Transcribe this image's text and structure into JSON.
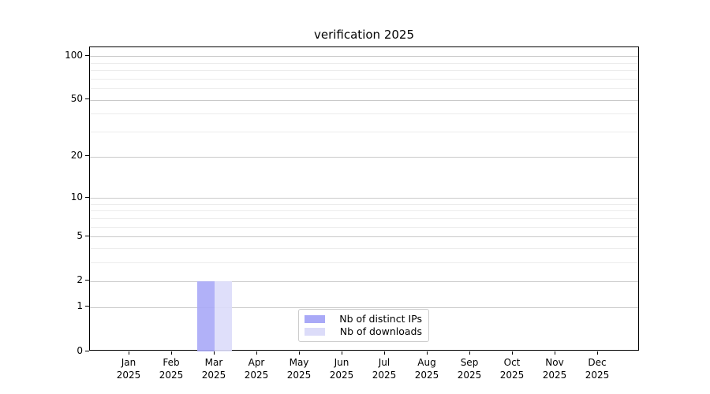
{
  "chart_data": {
    "type": "bar",
    "title": "verification 2025",
    "categories": [
      "Jan 2025",
      "Feb 2025",
      "Mar 2025",
      "Apr 2025",
      "May 2025",
      "Jun 2025",
      "Jul 2025",
      "Aug 2025",
      "Sep 2025",
      "Oct 2025",
      "Nov 2025",
      "Dec 2025"
    ],
    "series": [
      {
        "name": "Nb of distinct IPs",
        "color": "#a9a9f7",
        "values": [
          0,
          0,
          2,
          0,
          0,
          0,
          0,
          0,
          0,
          0,
          0,
          0
        ]
      },
      {
        "name": "Nb of downloads",
        "color": "#dcdcf9",
        "values": [
          0,
          0,
          2,
          0,
          0,
          0,
          0,
          0,
          0,
          0,
          0,
          0
        ]
      }
    ],
    "xlabel": "",
    "ylabel": "",
    "yscale": "log1p",
    "ylim": [
      0,
      114.7
    ],
    "y_tick_labels": [
      100,
      50,
      20,
      10,
      5,
      2,
      1,
      0
    ],
    "y_minor_gridlines": [
      3,
      4,
      6,
      7,
      8,
      9,
      30,
      40,
      60,
      70,
      80,
      90
    ],
    "grid": "horizontal",
    "legend_position": "lower center"
  },
  "colors": {
    "background": "#ffffff",
    "axis": "#000000",
    "text": "#000000",
    "major_grid": "#c9c9c9",
    "minor_grid": "#ececec",
    "legend_border": "#cccccc",
    "bar_distinct_ips": "#a9a9f7",
    "bar_downloads": "#dcdcf9"
  }
}
